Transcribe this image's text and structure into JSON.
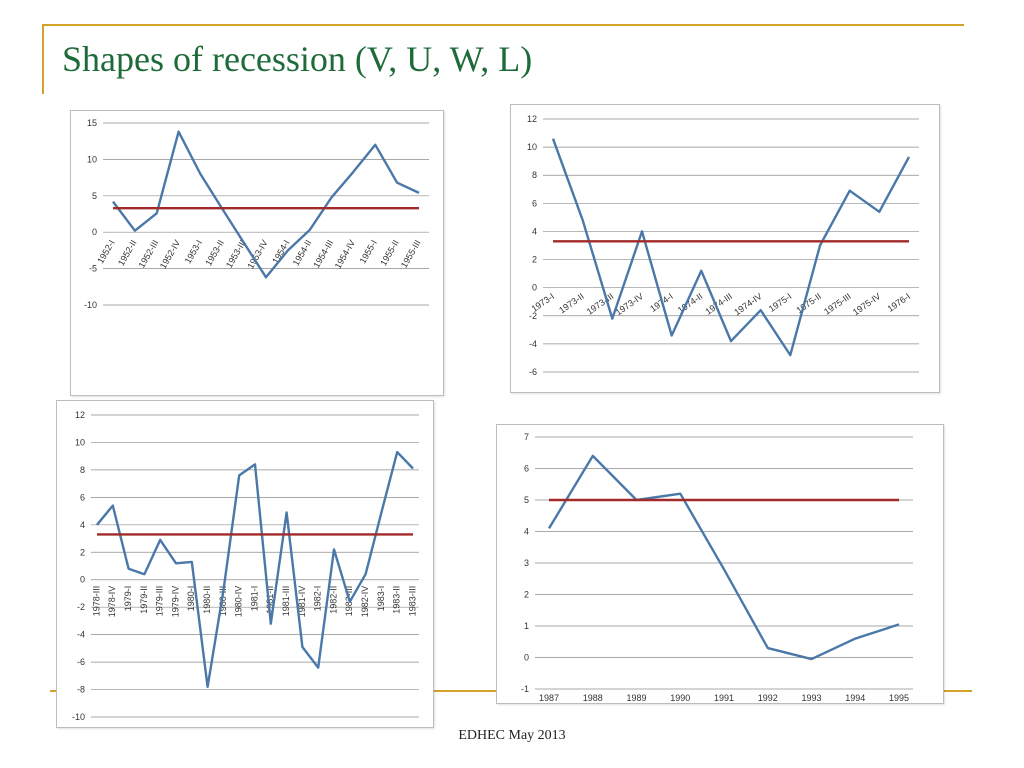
{
  "slide": {
    "title": "Shapes of recession (V, U, W, L)",
    "footer": "EDHEC May 2013",
    "accent_color": "#d4a22a",
    "title_color": "#1e6b3a"
  },
  "chart_data": [
    {
      "type": "line",
      "categories": [
        "1952-I",
        "1952-II",
        "1952-III",
        "1952-IV",
        "1953-I",
        "1953-II",
        "1953-III",
        "1953-IV",
        "1954-I",
        "1954-II",
        "1954-III",
        "1954-IV",
        "1955-I",
        "1955-II",
        "1955-III"
      ],
      "series": [
        {
          "values": [
            4.2,
            0.2,
            2.6,
            13.8,
            8,
            3.2,
            -1.5,
            -6.2,
            -2.5,
            0.3,
            4.8,
            8.3,
            12,
            6.8,
            5.4
          ],
          "color": "#4a78a8"
        },
        {
          "values": [
            3.3,
            3.3,
            3.3,
            3.3,
            3.3,
            3.3,
            3.3,
            3.3,
            3.3,
            3.3,
            3.3,
            3.3,
            3.3,
            3.3,
            3.3
          ],
          "color": "#a32a2a"
        }
      ],
      "ylim": [
        -10,
        15
      ],
      "yticks": [
        -10,
        -5,
        0,
        5,
        10,
        15
      ],
      "grid": true,
      "x_label_position": "axis",
      "title": "",
      "xlabel": "",
      "ylabel": ""
    },
    {
      "type": "line",
      "categories": [
        "1973-I",
        "1973-II",
        "1973-III",
        "1973-IV",
        "1974-I",
        "1974-II",
        "1974-III",
        "1974-IV",
        "1975-I",
        "1975-II",
        "1975-III",
        "1975-IV",
        "1976-I"
      ],
      "series": [
        {
          "values": [
            10.6,
            4.8,
            -2.2,
            4,
            -3.4,
            1.2,
            -3.8,
            -1.6,
            -4.8,
            3,
            6.9,
            5.4,
            9.3
          ],
          "color": "#4a78a8"
        },
        {
          "values": [
            3.3,
            3.3,
            3.3,
            3.3,
            3.3,
            3.3,
            3.3,
            3.3,
            3.3,
            3.3,
            3.3,
            3.3,
            3.3
          ],
          "color": "#a32a2a"
        }
      ],
      "ylim": [
        -6,
        12
      ],
      "yticks": [
        -6,
        -4,
        -2,
        0,
        2,
        4,
        6,
        8,
        10,
        12
      ],
      "grid": true,
      "x_label_position": "axis",
      "title": "",
      "xlabel": "",
      "ylabel": ""
    },
    {
      "type": "line",
      "categories": [
        "1978-III",
        "1978-IV",
        "1979-I",
        "1979-II",
        "1979-III",
        "1979-IV",
        "1980-I",
        "1980-II",
        "1980-III",
        "1980-IV",
        "1981-I",
        "1981-II",
        "1981-III",
        "1981-IV",
        "1982-I",
        "1982-II",
        "1982-III",
        "1982-IV",
        "1983-I",
        "1983-II",
        "1983-III"
      ],
      "series": [
        {
          "values": [
            4,
            5.4,
            0.8,
            0.4,
            2.9,
            1.2,
            1.3,
            -7.8,
            -0.8,
            7.6,
            8.4,
            -3.2,
            4.9,
            -4.9,
            -6.4,
            2.2,
            -1.6,
            0.4,
            4.9,
            9.3,
            8.1
          ],
          "color": "#4a78a8"
        },
        {
          "values": [
            3.3,
            3.3,
            3.3,
            3.3,
            3.3,
            3.3,
            3.3,
            3.3,
            3.3,
            3.3,
            3.3,
            3.3,
            3.3,
            3.3,
            3.3,
            3.3,
            3.3,
            3.3,
            3.3,
            3.3,
            3.3
          ],
          "color": "#a32a2a"
        }
      ],
      "ylim": [
        -10,
        12
      ],
      "yticks": [
        -10,
        -8,
        -6,
        -4,
        -2,
        0,
        2,
        4,
        6,
        8,
        10,
        12
      ],
      "grid": true,
      "x_label_position": "axis",
      "title": "",
      "xlabel": "",
      "ylabel": ""
    },
    {
      "type": "line",
      "categories": [
        "1987",
        "1988",
        "1989",
        "1990",
        "1991",
        "1992",
        "1993",
        "1994",
        "1995"
      ],
      "series": [
        {
          "values": [
            4.1,
            6.4,
            5,
            5.2,
            2.8,
            0.3,
            -0.05,
            0.6,
            1.05
          ],
          "color": "#4a78a8"
        },
        {
          "values": [
            5,
            5,
            5,
            5,
            5,
            5,
            5,
            5,
            5
          ],
          "color": "#a32a2a"
        }
      ],
      "ylim": [
        -1,
        7
      ],
      "yticks": [
        -1,
        0,
        1,
        2,
        3,
        4,
        5,
        6,
        7
      ],
      "grid": true,
      "x_label_position": "bottom",
      "title": "",
      "xlabel": "",
      "ylabel": ""
    }
  ]
}
